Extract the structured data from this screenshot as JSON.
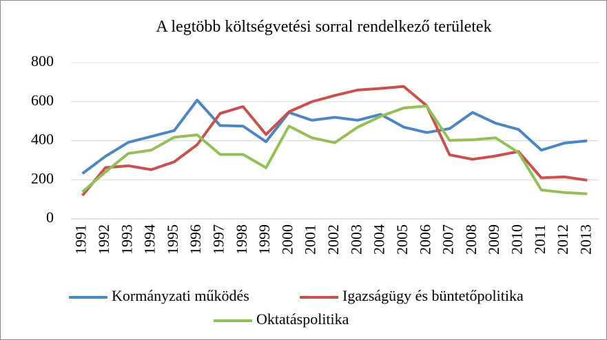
{
  "chart_data": {
    "type": "line",
    "title": "A legtöbb költségvetési sorral rendelkező területek",
    "categories": [
      "1991",
      "1992",
      "1993",
      "1994",
      "1995",
      "1996",
      "1997",
      "1998",
      "1999",
      "2000",
      "2001",
      "2002",
      "2003",
      "2004",
      "2005",
      "2006",
      "2007",
      "2008",
      "2009",
      "2010",
      "2011",
      "2012",
      "2013"
    ],
    "series": [
      {
        "name": "Kormányzati működés",
        "color": "#4a86c6",
        "values": [
          232,
          320,
          392,
          422,
          452,
          608,
          478,
          475,
          395,
          545,
          505,
          520,
          505,
          535,
          470,
          442,
          462,
          545,
          490,
          458,
          352,
          388,
          400
        ]
      },
      {
        "name": "Igazságügy és büntetőpolitika",
        "color": "#c9504b",
        "values": [
          120,
          262,
          272,
          252,
          292,
          380,
          540,
          575,
          432,
          548,
          600,
          632,
          660,
          668,
          678,
          580,
          328,
          305,
          322,
          345,
          210,
          215,
          198
        ]
      },
      {
        "name": "Oktatáspolitika",
        "color": "#92c054",
        "values": [
          138,
          240,
          335,
          352,
          418,
          430,
          330,
          330,
          262,
          475,
          415,
          390,
          470,
          525,
          568,
          578,
          402,
          405,
          415,
          340,
          148,
          135,
          128
        ]
      }
    ],
    "ylim": [
      0,
      800
    ],
    "yticks": [
      0,
      200,
      400,
      600,
      800
    ],
    "grid": true
  }
}
